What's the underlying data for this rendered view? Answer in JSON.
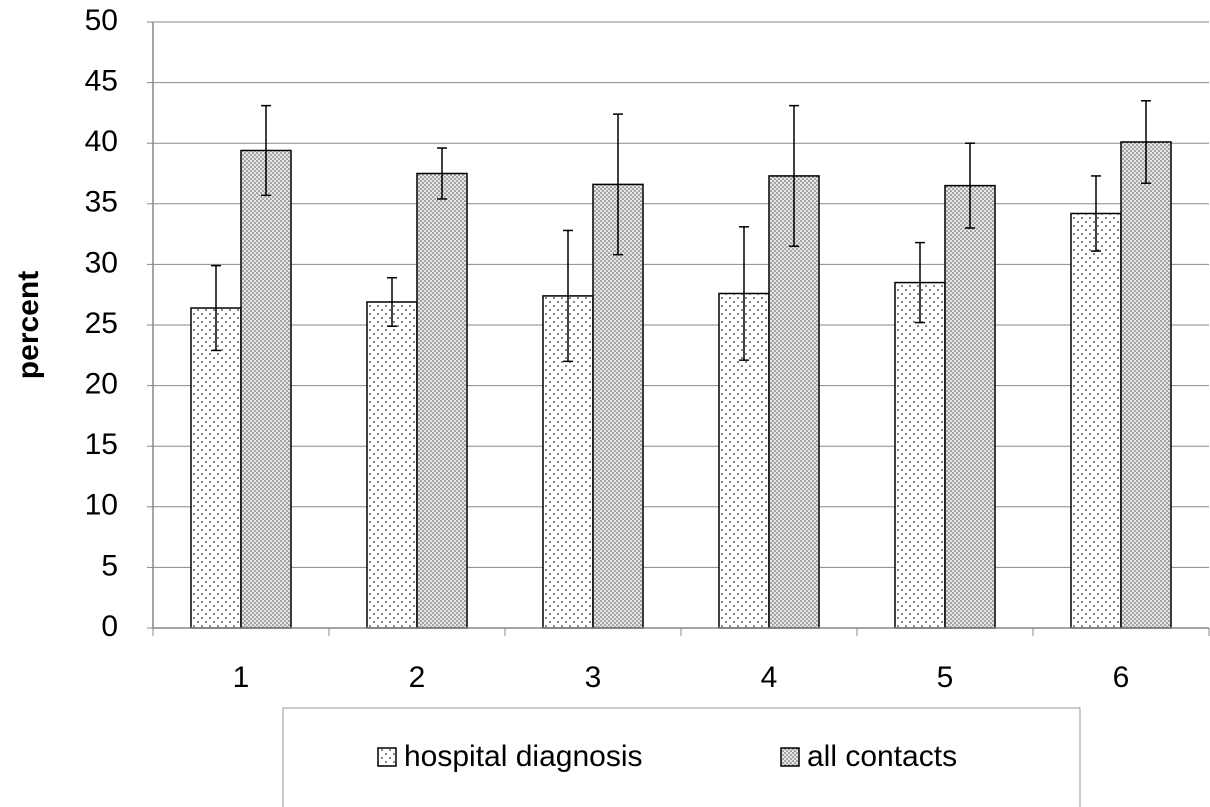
{
  "chart_data": {
    "type": "bar",
    "ylabel": "percent",
    "categories": [
      "1",
      "2",
      "3",
      "4",
      "5",
      "6"
    ],
    "series": [
      {
        "name": "hospital diagnosis",
        "values": [
          26.4,
          26.9,
          27.4,
          27.6,
          28.5,
          34.2
        ],
        "errors": [
          3.5,
          2.0,
          5.4,
          5.5,
          3.3,
          3.1
        ]
      },
      {
        "name": "all contacts",
        "values": [
          39.4,
          37.5,
          36.6,
          37.3,
          36.5,
          40.1
        ],
        "errors": [
          3.7,
          2.1,
          5.8,
          5.8,
          3.5,
          3.4
        ]
      }
    ],
    "ylim": [
      0,
      50
    ],
    "yticks": [
      0,
      5,
      10,
      15,
      20,
      25,
      30,
      35,
      40,
      45,
      50
    ],
    "grid": true,
    "legend": "bottom"
  }
}
